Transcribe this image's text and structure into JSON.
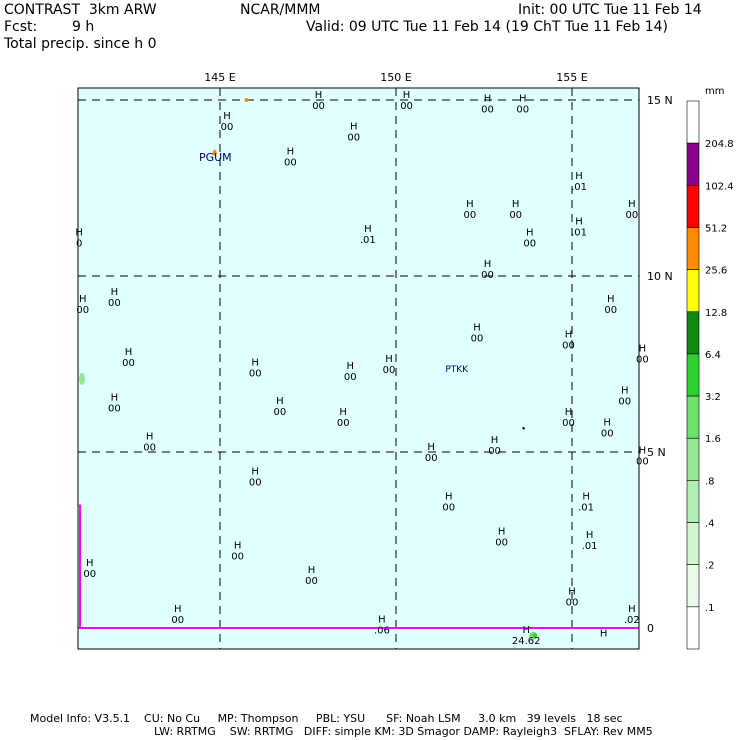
{
  "header": {
    "model": "CONTRAST  3km ARW",
    "org": "NCAR/MMM",
    "init": "Init: 00 UTC Tue 11 Feb 14",
    "fcst_label": "Fcst:",
    "fcst_value": "9 h",
    "valid": "Valid: 09 UTC Tue 11 Feb 14 (19 ChT Tue 11 Feb 14)",
    "field": "Total precip. since h 0"
  },
  "map": {
    "lon_labels": [
      "145 E",
      "150 E",
      "155 E"
    ],
    "lat_labels": [
      "15 N",
      "10 N",
      "5 N",
      "0"
    ],
    "stations": [
      {
        "name": "PGUM",
        "lon": 144.8,
        "lat": 13.5
      },
      {
        "name": "PTKK",
        "lon": 151.8,
        "lat": 7.5
      }
    ],
    "highs": [
      {
        "lon": 145.2,
        "lat": 14.4,
        "value": "00"
      },
      {
        "lon": 147.8,
        "lat": 15.0,
        "value": "00"
      },
      {
        "lon": 148.8,
        "lat": 14.1,
        "value": "00"
      },
      {
        "lon": 147.0,
        "lat": 13.4,
        "value": "00"
      },
      {
        "lon": 150.3,
        "lat": 15.0,
        "value": "00"
      },
      {
        "lon": 152.6,
        "lat": 14.9,
        "value": "00"
      },
      {
        "lon": 153.6,
        "lat": 14.9,
        "value": "00"
      },
      {
        "lon": 155.2,
        "lat": 12.7,
        "value": ".01"
      },
      {
        "lon": 152.1,
        "lat": 11.9,
        "value": "00"
      },
      {
        "lon": 153.4,
        "lat": 11.9,
        "value": "00"
      },
      {
        "lon": 156.7,
        "lat": 11.9,
        "value": "00"
      },
      {
        "lon": 155.2,
        "lat": 11.4,
        "value": ".01"
      },
      {
        "lon": 153.8,
        "lat": 11.1,
        "value": "00"
      },
      {
        "lon": 149.2,
        "lat": 11.2,
        "value": ".01"
      },
      {
        "lon": 141.0,
        "lat": 11.1,
        "value": "0"
      },
      {
        "lon": 152.6,
        "lat": 10.2,
        "value": "00"
      },
      {
        "lon": 142.0,
        "lat": 9.4,
        "value": "00"
      },
      {
        "lon": 141.1,
        "lat": 9.2,
        "value": "00"
      },
      {
        "lon": 156.1,
        "lat": 9.2,
        "value": "00"
      },
      {
        "lon": 152.3,
        "lat": 8.4,
        "value": "00"
      },
      {
        "lon": 154.9,
        "lat": 8.2,
        "value": "00"
      },
      {
        "lon": 157.0,
        "lat": 7.8,
        "value": "00"
      },
      {
        "lon": 142.4,
        "lat": 7.7,
        "value": "00"
      },
      {
        "lon": 146.0,
        "lat": 7.4,
        "value": "00"
      },
      {
        "lon": 148.7,
        "lat": 7.3,
        "value": "00"
      },
      {
        "lon": 149.8,
        "lat": 7.5,
        "value": "00"
      },
      {
        "lon": 156.5,
        "lat": 6.6,
        "value": "00"
      },
      {
        "lon": 142.0,
        "lat": 6.4,
        "value": "00"
      },
      {
        "lon": 146.7,
        "lat": 6.3,
        "value": "00"
      },
      {
        "lon": 148.5,
        "lat": 6.0,
        "value": "00"
      },
      {
        "lon": 154.9,
        "lat": 6.0,
        "value": "00"
      },
      {
        "lon": 156.0,
        "lat": 5.7,
        "value": "00"
      },
      {
        "lon": 143.0,
        "lat": 5.3,
        "value": "00"
      },
      {
        "lon": 151.0,
        "lat": 5.0,
        "value": "00"
      },
      {
        "lon": 152.8,
        "lat": 5.2,
        "value": "00"
      },
      {
        "lon": 157.0,
        "lat": 4.9,
        "value": "00"
      },
      {
        "lon": 146.0,
        "lat": 4.3,
        "value": "00"
      },
      {
        "lon": 151.5,
        "lat": 3.6,
        "value": "00"
      },
      {
        "lon": 155.4,
        "lat": 3.6,
        "value": ".01"
      },
      {
        "lon": 145.5,
        "lat": 2.2,
        "value": "00"
      },
      {
        "lon": 153.0,
        "lat": 2.6,
        "value": "00"
      },
      {
        "lon": 155.5,
        "lat": 2.5,
        "value": ".01"
      },
      {
        "lon": 141.3,
        "lat": 1.7,
        "value": "00"
      },
      {
        "lon": 147.6,
        "lat": 1.5,
        "value": "00"
      },
      {
        "lon": 155.0,
        "lat": 0.9,
        "value": "00"
      },
      {
        "lon": 143.8,
        "lat": 0.4,
        "value": "00"
      },
      {
        "lon": 149.6,
        "lat": 0.1,
        "value": ".06"
      },
      {
        "lon": 156.7,
        "lat": 0.4,
        "value": ".02"
      },
      {
        "lon": 153.7,
        "lat": -0.2,
        "value": "24.62"
      },
      {
        "lon": 155.9,
        "lat": -0.3,
        "value": ""
      }
    ]
  },
  "legend": {
    "unit": "mm",
    "levels": [
      ".1",
      ".2",
      ".4",
      ".8",
      "1.6",
      "3.2",
      "6.4",
      "12.8",
      "25.6",
      "51.2",
      "102.4",
      "204.8"
    ],
    "colors": [
      "#ffffff",
      "#eafaea",
      "#d2f5d2",
      "#b4eeb4",
      "#96e896",
      "#6ee06e",
      "#2ed02e",
      "#118811",
      "#ffff00",
      "#ff8c00",
      "#ff0000",
      "#8b008b",
      "#ffffff"
    ]
  },
  "footer": {
    "line1": "Model Info: V3.5.1    CU: No Cu     MP: Thompson     PBL: YSU      SF: Noah LSM     3.0 km   39 levels   18 sec",
    "line2": "LW: RRTMG    SW: RRTMG   DIFF: simple KM: 3D Smagor DAMP: Rayleigh3  SFLAY: Rev MM5"
  }
}
